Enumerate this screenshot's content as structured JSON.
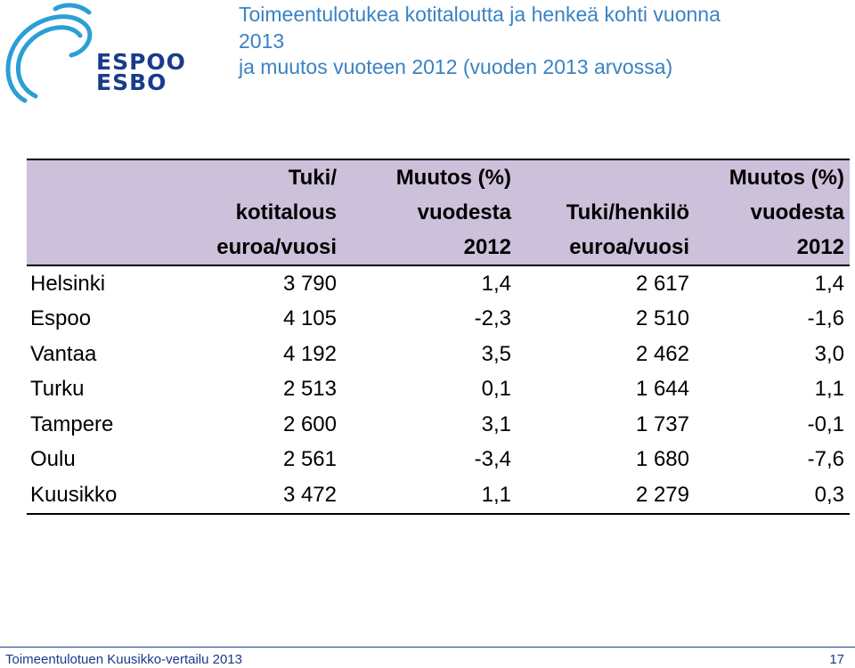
{
  "logo": {
    "line1": "ESPOO",
    "line2": "ESBO",
    "color": "#1a3a8c",
    "swirl_color": "#2a9fd6"
  },
  "title": {
    "lines": [
      "Toimeentulotukea kotitaloutta ja henkeä kohti vuonna",
      "2013",
      "ja muutos vuoteen 2012 (vuoden 2013 arvossa)"
    ],
    "color": "#3a82c4"
  },
  "table": {
    "header_color": "#ccc0da",
    "columns": [
      {
        "lines": [
          "",
          "",
          ""
        ]
      },
      {
        "lines": [
          "Tuki/",
          "kotitalous",
          "euroa/vuosi"
        ]
      },
      {
        "lines": [
          "Muutos (%)",
          "vuodesta",
          "2012"
        ]
      },
      {
        "lines": [
          "",
          "Tuki/henkilö",
          "euroa/vuosi"
        ]
      },
      {
        "lines": [
          "Muutos (%)",
          "vuodesta",
          "2012"
        ]
      }
    ],
    "rows": [
      [
        "Helsinki",
        "3 790",
        "1,4",
        "2 617",
        "1,4"
      ],
      [
        "Espoo",
        "4 105",
        "-2,3",
        "2 510",
        "-1,6"
      ],
      [
        "Vantaa",
        "4 192",
        "3,5",
        "2 462",
        "3,0"
      ],
      [
        "Turku",
        "2 513",
        "0,1",
        "1 644",
        "1,1"
      ],
      [
        "Tampere",
        "2 600",
        "3,1",
        "1 737",
        "-0,1"
      ],
      [
        "Oulu",
        "2 561",
        "-3,4",
        "1 680",
        "-7,6"
      ],
      [
        "Kuusikko",
        "3 472",
        "1,1",
        "2 279",
        "0,3"
      ]
    ]
  },
  "footer": {
    "left": "Toimeentulotuen Kuusikko-vertailu 2013",
    "page": "17"
  }
}
